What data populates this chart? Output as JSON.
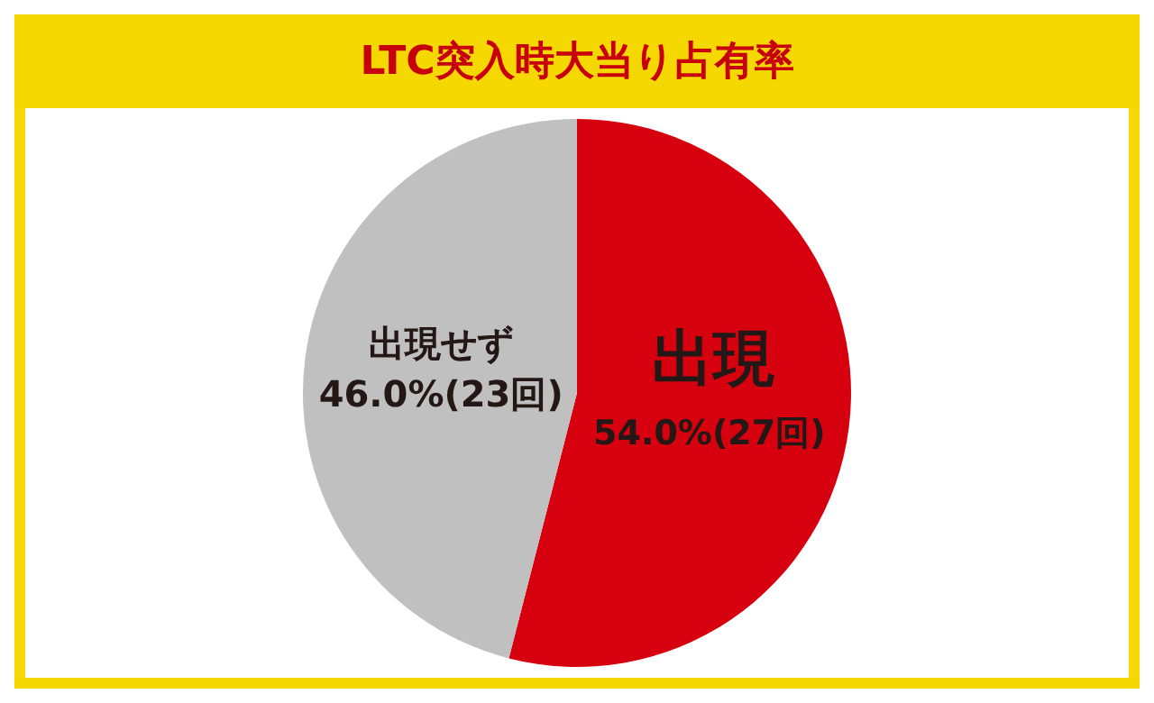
{
  "chart_data": {
    "type": "pie",
    "title": "LTC突入時大当り占有率",
    "categories": [
      "出現",
      "出現せず"
    ],
    "values": [
      54.0,
      46.0
    ],
    "colors": [
      "#d7000f",
      "#c0c0c0"
    ],
    "value_labels": [
      "54.0%(27回)",
      "46.0%(23回)"
    ],
    "legend": false
  }
}
